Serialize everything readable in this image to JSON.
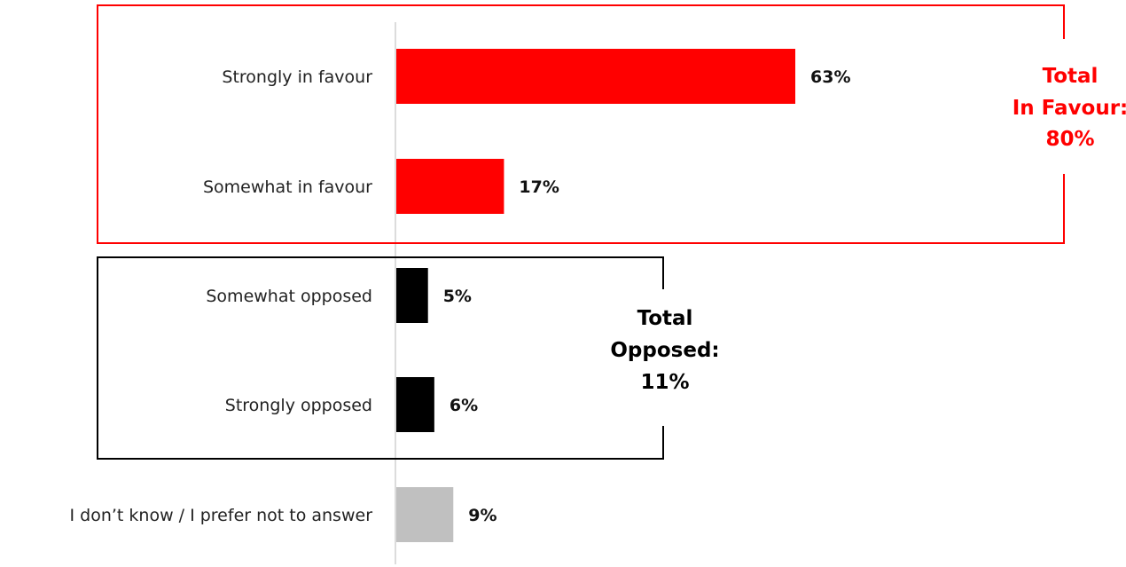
{
  "chart_data": {
    "type": "bar",
    "orientation": "horizontal",
    "categories": [
      "Strongly in favour",
      "Somewhat in favour",
      "Somewhat opposed",
      "Strongly opposed",
      "I don’t know / I prefer not to answer"
    ],
    "values": [
      63,
      17,
      5,
      6,
      9
    ],
    "value_labels": [
      "63%",
      "17%",
      "5%",
      "6%",
      "9%"
    ],
    "colors": [
      "#ff0000",
      "#ff0000",
      "#000000",
      "#000000",
      "#c0c0c0"
    ],
    "xlim": [
      0,
      100
    ],
    "grid": false,
    "groups": [
      {
        "key": "favour",
        "members": [
          0,
          1
        ],
        "color": "#ff0000",
        "label_lines": [
          "Total",
          "In Favour:",
          "80%"
        ]
      },
      {
        "key": "opposed",
        "members": [
          2,
          3
        ],
        "color": "#000000",
        "label_lines": [
          "Total",
          "Opposed:",
          "11%"
        ]
      }
    ]
  }
}
